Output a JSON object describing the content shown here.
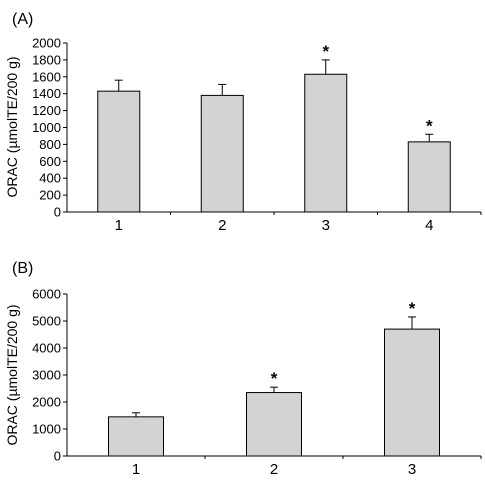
{
  "chart_data": [
    {
      "type": "bar",
      "panel_label": "(A)",
      "ylabel": "ORAC (µmolTE/200 g)",
      "categories": [
        "1",
        "2",
        "3",
        "4"
      ],
      "values": [
        1430,
        1380,
        1630,
        830
      ],
      "errors": [
        130,
        130,
        170,
        90
      ],
      "significant": [
        false,
        false,
        true,
        true
      ],
      "significance_marker": "*",
      "ylim": [
        0,
        2000
      ],
      "yticks": [
        "0",
        "200",
        "400",
        "600",
        "800",
        "1000",
        "1200",
        "1400",
        "1600",
        "1800",
        "2000"
      ],
      "bar_color": "#d3d3d3"
    },
    {
      "type": "bar",
      "panel_label": "(B)",
      "ylabel": "ORAC (µmolTE/200 g)",
      "categories": [
        "1",
        "2",
        "3"
      ],
      "values": [
        1450,
        2350,
        4700
      ],
      "errors": [
        150,
        200,
        450
      ],
      "significant": [
        false,
        true,
        true
      ],
      "significance_marker": "*",
      "ylim": [
        0,
        6000
      ],
      "yticks": [
        "0",
        "1000",
        "2000",
        "3000",
        "4000",
        "5000",
        "6000"
      ],
      "bar_color": "#d3d3d3"
    }
  ]
}
